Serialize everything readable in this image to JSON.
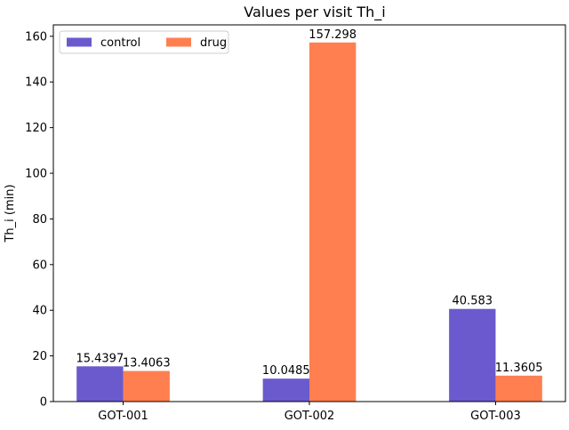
{
  "chart_data": {
    "type": "bar",
    "title": "Values per visit Th_i",
    "xlabel": "",
    "ylabel": "Th_i (min)",
    "categories": [
      "GOT-001",
      "GOT-002",
      "GOT-003"
    ],
    "series": [
      {
        "name": "control",
        "color": "#6a5acd",
        "values": [
          15.4397,
          10.0485,
          40.583
        ],
        "labels": [
          "15.4397",
          "10.0485",
          "40.583"
        ]
      },
      {
        "name": "drug",
        "color": "#ff7f50",
        "values": [
          13.4063,
          157.298,
          11.3605
        ],
        "labels": [
          "13.4063",
          "157.298",
          "11.3605"
        ]
      }
    ],
    "ylim": [
      0,
      165
    ],
    "yticks": [
      0,
      20,
      40,
      60,
      80,
      100,
      120,
      140,
      160
    ],
    "ytick_labels": [
      "0",
      "20",
      "40",
      "60",
      "80",
      "100",
      "120",
      "140",
      "160"
    ],
    "grid": false,
    "legend": {
      "placement": "top-left",
      "columns": 2
    }
  }
}
